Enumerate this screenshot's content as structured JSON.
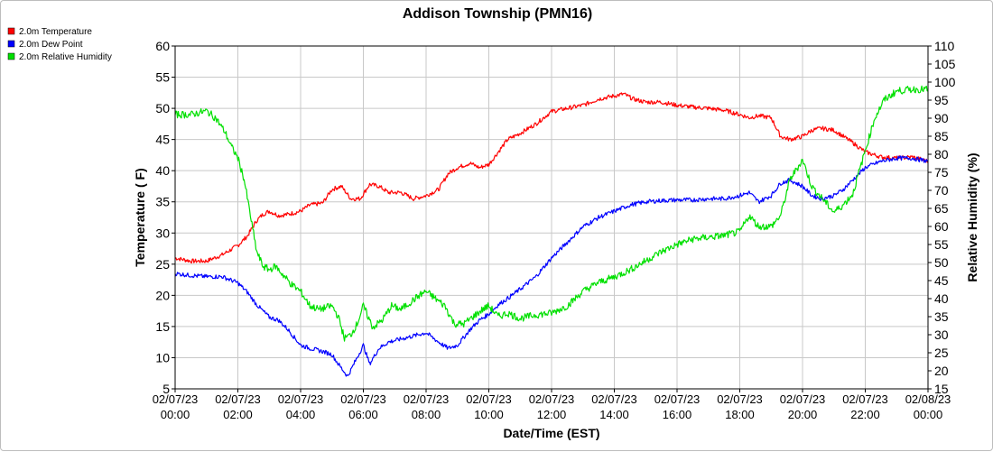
{
  "chart_data": {
    "type": "line",
    "title": "Addison Township (PMN16)",
    "xlabel": "Date/Time (EST)",
    "ylabel": "Temperature ( F)",
    "y2label": "Relative Humidity (%)",
    "xlim": [
      0,
      24
    ],
    "ylim": [
      5,
      60
    ],
    "y2lim": [
      15,
      110
    ],
    "grid": true,
    "legend_position": "top-left",
    "x_ticks": [
      {
        "date": "02/07/23",
        "time": "00:00"
      },
      {
        "date": "02/07/23",
        "time": "02:00"
      },
      {
        "date": "02/07/23",
        "time": "04:00"
      },
      {
        "date": "02/07/23",
        "time": "06:00"
      },
      {
        "date": "02/07/23",
        "time": "08:00"
      },
      {
        "date": "02/07/23",
        "time": "10:00"
      },
      {
        "date": "02/07/23",
        "time": "12:00"
      },
      {
        "date": "02/07/23",
        "time": "14:00"
      },
      {
        "date": "02/07/23",
        "time": "16:00"
      },
      {
        "date": "02/07/23",
        "time": "18:00"
      },
      {
        "date": "02/07/23",
        "time": "20:00"
      },
      {
        "date": "02/07/23",
        "time": "22:00"
      },
      {
        "date": "02/08/23",
        "time": "00:00"
      }
    ],
    "y_ticks": [
      5,
      10,
      15,
      20,
      25,
      30,
      35,
      40,
      45,
      50,
      55,
      60
    ],
    "y2_ticks": [
      15,
      20,
      25,
      30,
      35,
      40,
      45,
      50,
      55,
      60,
      65,
      70,
      75,
      80,
      85,
      90,
      95,
      100,
      105,
      110
    ],
    "series": [
      {
        "name": "2.0m Temperature",
        "color": "#ff0000",
        "axis": "left",
        "x": [
          0,
          0.5,
          1,
          1.5,
          2,
          2.3,
          2.6,
          2.8,
          3,
          3.3,
          3.6,
          4,
          4.3,
          4.7,
          5,
          5.3,
          5.6,
          5.9,
          6.2,
          6.5,
          6.8,
          7.2,
          7.6,
          8,
          8.4,
          8.7,
          9,
          9.4,
          9.7,
          10,
          10.3,
          10.6,
          11,
          11.5,
          12,
          12.5,
          13,
          13.5,
          14,
          14.3,
          14.6,
          15,
          15.5,
          16,
          16.5,
          17,
          17.5,
          18,
          18.3,
          18.6,
          19,
          19.3,
          19.6,
          20,
          20.3,
          20.6,
          21,
          21.3,
          21.6,
          22,
          22.5,
          23,
          23.5,
          24
        ],
        "y": [
          26,
          25.5,
          25.5,
          26.5,
          28,
          29.5,
          32,
          33,
          33.5,
          32.8,
          33,
          33.5,
          34.5,
          34.8,
          37,
          37.5,
          35.5,
          35.5,
          37.8,
          37.5,
          36.5,
          36.5,
          35.5,
          36,
          37,
          39.5,
          40.5,
          41.2,
          40.5,
          41,
          43,
          45,
          46,
          47.5,
          49.5,
          50,
          50.5,
          51.5,
          52,
          52.3,
          51.5,
          51,
          51,
          50.5,
          50.2,
          50,
          49.7,
          49,
          48.5,
          48.8,
          48.5,
          45.5,
          45,
          45.5,
          46.5,
          46.8,
          46.5,
          45.5,
          44.5,
          43,
          42.2,
          42,
          42.2,
          41.5
        ]
      },
      {
        "name": "2.0m Dew Point",
        "color": "#0000ff",
        "axis": "left",
        "x": [
          0,
          0.5,
          1,
          1.5,
          2,
          2.3,
          2.6,
          2.8,
          3,
          3.3,
          3.6,
          4,
          4.3,
          4.7,
          5,
          5.2,
          5.5,
          5.8,
          6,
          6.2,
          6.5,
          6.8,
          7.2,
          7.6,
          8,
          8.4,
          8.7,
          9,
          9.4,
          9.7,
          10,
          10.3,
          10.6,
          11,
          11.5,
          12,
          12.5,
          13,
          13.5,
          14,
          14.5,
          15,
          15.5,
          16,
          16.5,
          17,
          17.5,
          18,
          18.3,
          18.6,
          19,
          19.3,
          19.6,
          20,
          20.3,
          20.6,
          21,
          21.3,
          21.6,
          22,
          22.5,
          23,
          23.5,
          24
        ],
        "y": [
          23.5,
          23.2,
          23,
          23,
          22,
          20.5,
          18.5,
          17.5,
          16.5,
          16,
          14.5,
          12,
          11.5,
          11,
          10.5,
          9,
          7,
          10,
          12,
          9,
          11.5,
          12.5,
          13,
          13.5,
          14,
          12.5,
          11.5,
          12,
          14.5,
          16,
          17,
          18.5,
          19.5,
          21,
          23,
          26,
          28.5,
          31,
          32.5,
          33.5,
          34.5,
          35,
          35.2,
          35.3,
          35.3,
          35.5,
          35.5,
          36,
          36.5,
          35,
          36,
          38,
          38.5,
          37.5,
          36,
          35.5,
          36,
          37,
          38.5,
          40.5,
          41.5,
          42,
          42,
          41.5
        ]
      },
      {
        "name": "2.0m Relative Humidity",
        "color": "#00e000",
        "axis": "right",
        "x": [
          0,
          0.5,
          1,
          1.3,
          1.6,
          1.8,
          2,
          2.2,
          2.4,
          2.6,
          2.8,
          3,
          3.2,
          3.4,
          3.7,
          4,
          4.3,
          4.6,
          5,
          5.2,
          5.4,
          5.6,
          5.8,
          6,
          6.3,
          6.6,
          6.9,
          7.2,
          7.5,
          7.8,
          8,
          8.3,
          8.6,
          8.9,
          9.2,
          9.5,
          9.8,
          10,
          10.3,
          10.6,
          11,
          11.5,
          12,
          12.5,
          13,
          13.5,
          14,
          14.5,
          15,
          15.5,
          16,
          16.5,
          17,
          17.5,
          18,
          18.3,
          18.6,
          19,
          19.3,
          19.6,
          20,
          20.3,
          20.6,
          21,
          21.3,
          21.6,
          22,
          22.3,
          22.6,
          23,
          23.5,
          24
        ],
        "y": [
          91,
          91,
          92,
          90,
          86,
          82,
          79,
          73,
          63,
          53,
          49,
          48,
          49,
          47,
          44,
          42,
          38,
          37,
          38,
          35,
          29,
          30,
          33,
          38,
          32,
          34,
          38,
          37,
          39,
          41,
          42,
          40,
          38,
          33,
          33,
          35,
          37,
          38,
          35,
          36,
          34.5,
          35.5,
          36,
          38,
          42,
          44.5,
          46,
          48,
          50.5,
          53,
          55,
          56.5,
          57,
          57.5,
          58.5,
          63,
          60,
          60,
          63,
          73,
          78.5,
          71,
          68,
          64,
          66,
          69,
          81,
          90,
          95,
          97.5,
          98,
          98
        ]
      }
    ]
  }
}
